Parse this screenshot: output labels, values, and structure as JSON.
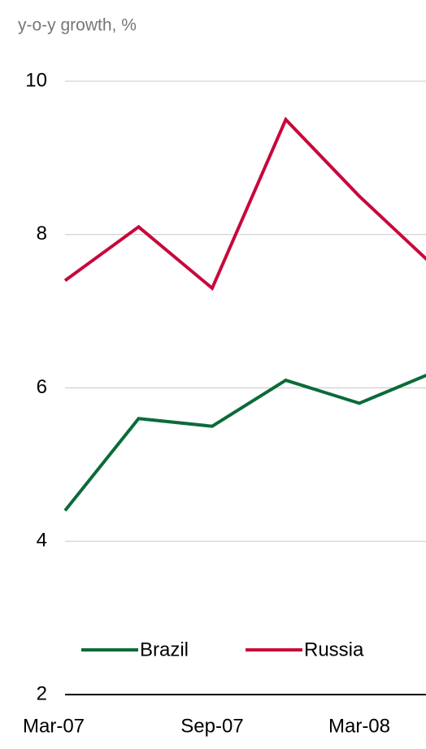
{
  "chart_data": {
    "type": "line",
    "title": "y-o-y growth, %",
    "categories": [
      "Mar-07",
      null,
      "Sep-07",
      null,
      "Mar-08",
      null
    ],
    "series": [
      {
        "name": "Brazil",
        "color": "#0b6b3a",
        "values": [
          4.4,
          5.6,
          5.5,
          6.1,
          5.8,
          6.2
        ]
      },
      {
        "name": "Russia",
        "color": "#c8083c",
        "values": [
          7.4,
          8.1,
          7.3,
          9.5,
          8.5,
          7.6
        ]
      }
    ],
    "ylim": [
      2,
      10
    ],
    "yticks": [
      2,
      4,
      6,
      8,
      10
    ],
    "grid": true,
    "legend": "bottom"
  }
}
